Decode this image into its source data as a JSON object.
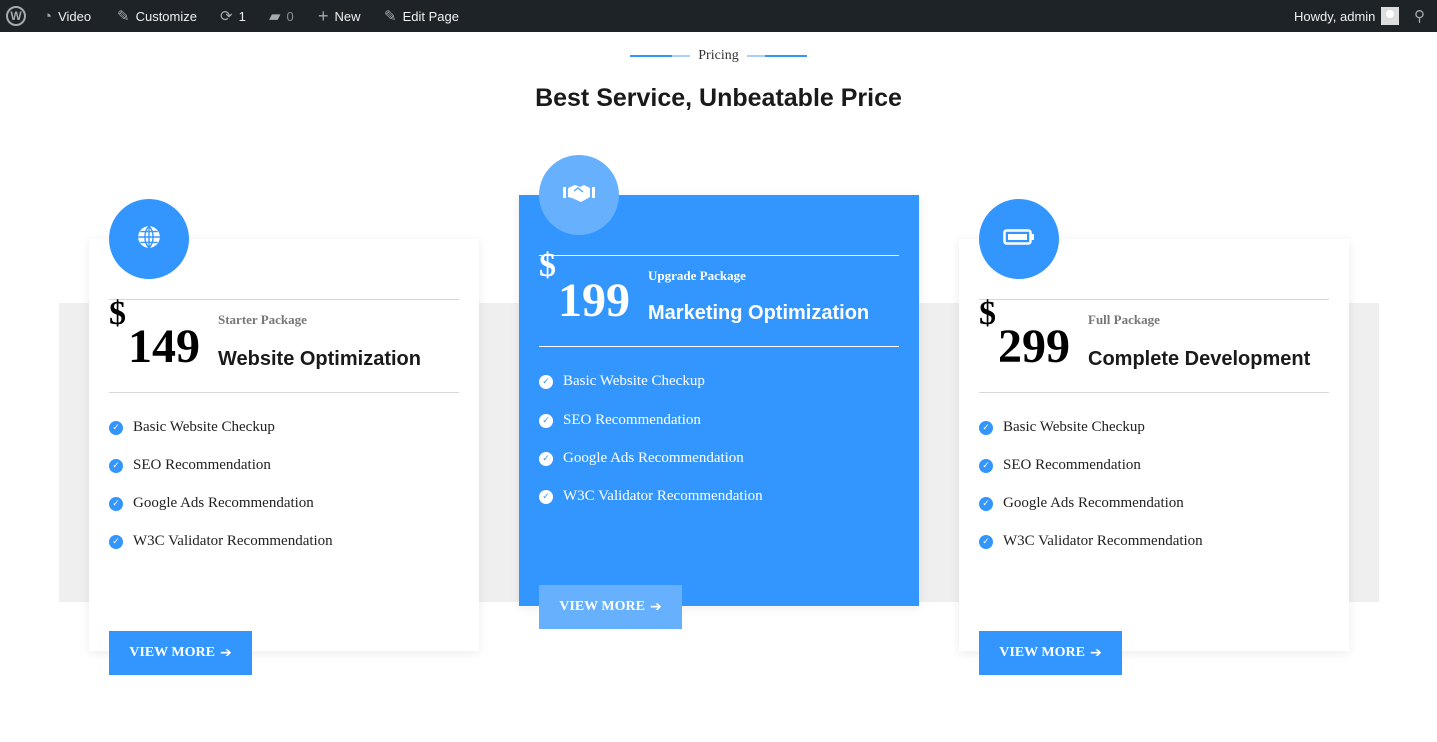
{
  "adminbar": {
    "site": "Video",
    "customize": "Customize",
    "updates": "1",
    "comments": "0",
    "new": "New",
    "edit": "Edit Page",
    "howdy": "Howdy, admin"
  },
  "section": {
    "eyebrow": "Pricing",
    "title": "Best Service, Unbeatable Price"
  },
  "colors": {
    "accent": "#3396fe",
    "accent_light": "#66b0fe",
    "adminbar": "#1d2327"
  },
  "plans": [
    {
      "icon": "globe-icon",
      "currency": "$",
      "price": "149",
      "package": "Starter Package",
      "name": "Website Optimization",
      "features": [
        "Basic Website Checkup",
        "SEO Recommendation",
        "Google Ads Recommendation",
        "W3C Validator Recommendation"
      ],
      "button": "VIEW MORE"
    },
    {
      "icon": "handshake-icon",
      "currency": "$",
      "price": "199",
      "package": "Upgrade Package",
      "name": "Marketing Optimization",
      "features": [
        "Basic Website Checkup",
        "SEO Recommendation",
        "Google Ads Recommendation",
        "W3C Validator Recommendation"
      ],
      "button": "VIEW MORE"
    },
    {
      "icon": "battery-icon",
      "currency": "$",
      "price": "299",
      "package": "Full Package",
      "name": "Complete Development",
      "features": [
        "Basic Website Checkup",
        "SEO Recommendation",
        "Google Ads Recommendation",
        "W3C Validator Recommendation"
      ],
      "button": "VIEW MORE"
    }
  ]
}
